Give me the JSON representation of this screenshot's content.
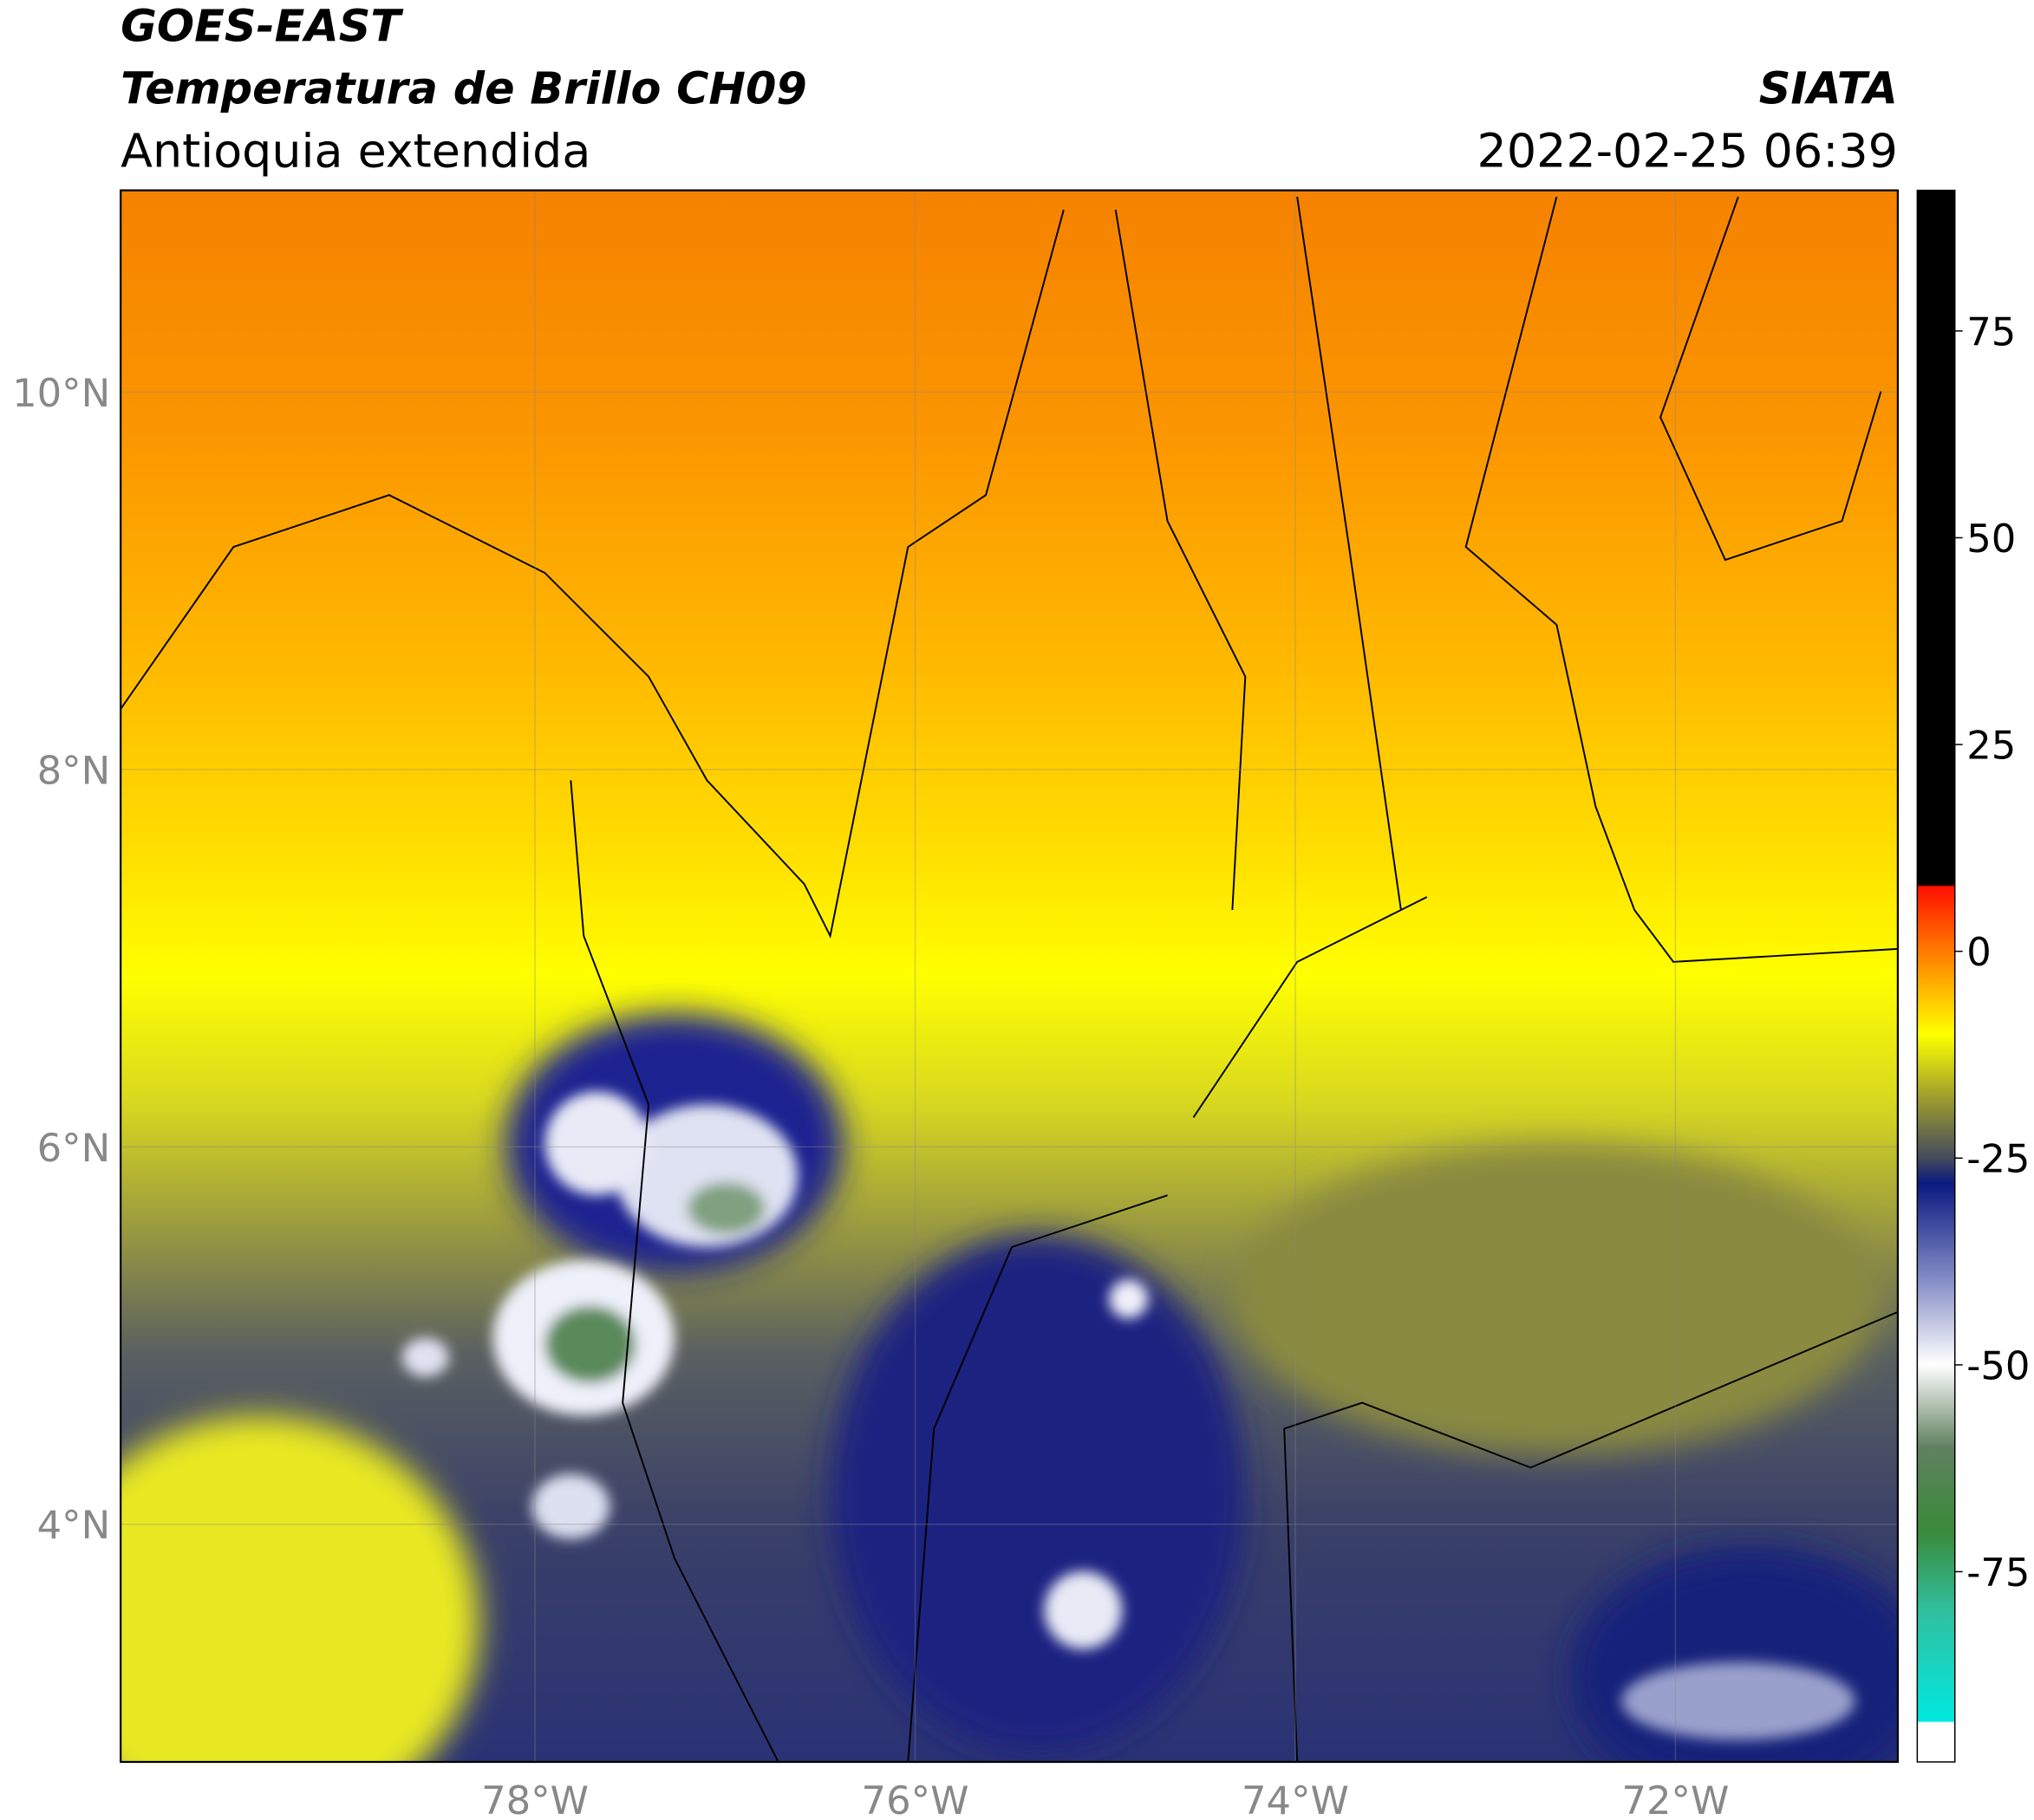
{
  "header": {
    "title": "GOES-EAST",
    "subtitle": "Temperatura de Brillo CH09",
    "region": "Antioquia extendida",
    "source": "SIATA",
    "datetime": "2022-02-25 06:39"
  },
  "map": {
    "xlim": [
      -80.18,
      -70.83
    ],
    "ylim": [
      2.74,
      11.07
    ],
    "xticks": [
      {
        "value": -78,
        "label": "78°W"
      },
      {
        "value": -76,
        "label": "76°W"
      },
      {
        "value": -74,
        "label": "74°W"
      },
      {
        "value": -72,
        "label": "72°W"
      }
    ],
    "yticks": [
      {
        "value": 4,
        "label": "4°N"
      },
      {
        "value": 6,
        "label": "6°N"
      },
      {
        "value": 8,
        "label": "8°N"
      },
      {
        "value": 10,
        "label": "10°N"
      }
    ],
    "grid": true
  },
  "colorbar": {
    "lim": [
      -98,
      92
    ],
    "ticks": [
      75,
      50,
      25,
      0,
      -25,
      -50,
      -75
    ]
  }
}
